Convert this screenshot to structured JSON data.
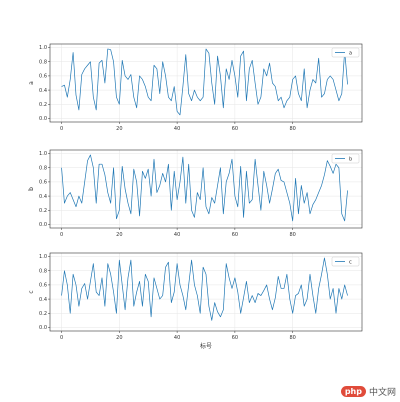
{
  "chart_data": [
    {
      "type": "line",
      "ylabel": "a",
      "xlabel": "",
      "legend": "a",
      "legend_position": "top-right",
      "grid": true,
      "xlim": [
        -4,
        104
      ],
      "ylim": [
        -0.05,
        1.05
      ],
      "xticks": [
        0,
        20,
        40,
        60,
        80
      ],
      "yticks": [
        0.0,
        0.2,
        0.4,
        0.6,
        0.8,
        1.0
      ],
      "color": "#1f77b4",
      "x": [
        0,
        1,
        2,
        3,
        4,
        5,
        6,
        7,
        8,
        9,
        10,
        11,
        12,
        13,
        14,
        15,
        16,
        17,
        18,
        19,
        20,
        21,
        22,
        23,
        24,
        25,
        26,
        27,
        28,
        29,
        30,
        31,
        32,
        33,
        34,
        35,
        36,
        37,
        38,
        39,
        40,
        41,
        42,
        43,
        44,
        45,
        46,
        47,
        48,
        49,
        50,
        51,
        52,
        53,
        54,
        55,
        56,
        57,
        58,
        59,
        60,
        61,
        62,
        63,
        64,
        65,
        66,
        67,
        68,
        69,
        70,
        71,
        72,
        73,
        74,
        75,
        76,
        77,
        78,
        79,
        80,
        81,
        82,
        83,
        84,
        85,
        86,
        87,
        88,
        89,
        90,
        91,
        92,
        93,
        94,
        95,
        96,
        97,
        98,
        99
      ],
      "values": [
        0.45,
        0.47,
        0.3,
        0.55,
        0.93,
        0.33,
        0.12,
        0.62,
        0.7,
        0.75,
        0.8,
        0.3,
        0.12,
        0.78,
        0.82,
        0.5,
        0.98,
        0.97,
        0.8,
        0.3,
        0.2,
        0.82,
        0.6,
        0.55,
        0.62,
        0.3,
        0.15,
        0.6,
        0.55,
        0.45,
        0.3,
        0.25,
        0.75,
        0.7,
        0.35,
        0.8,
        0.6,
        0.3,
        0.25,
        0.45,
        0.1,
        0.05,
        0.45,
        0.9,
        0.35,
        0.25,
        0.4,
        0.3,
        0.25,
        0.3,
        0.98,
        0.92,
        0.5,
        0.2,
        0.88,
        0.6,
        0.15,
        0.7,
        0.55,
        0.82,
        0.6,
        0.3,
        0.88,
        0.95,
        0.25,
        0.7,
        0.82,
        0.5,
        0.2,
        0.3,
        0.7,
        0.6,
        0.78,
        0.5,
        0.45,
        0.25,
        0.3,
        0.15,
        0.25,
        0.3,
        0.55,
        0.6,
        0.35,
        0.25,
        0.7,
        0.15,
        0.4,
        0.55,
        0.5,
        0.85,
        0.3,
        0.35,
        0.55,
        0.6,
        0.55,
        0.4,
        0.25,
        0.35,
        0.95,
        0.48
      ]
    },
    {
      "type": "line",
      "ylabel": "b",
      "xlabel": "",
      "legend": "b",
      "legend_position": "top-right",
      "grid": true,
      "xlim": [
        -4,
        104
      ],
      "ylim": [
        -0.05,
        1.05
      ],
      "xticks": [
        0,
        20,
        40,
        60,
        80
      ],
      "yticks": [
        0.0,
        0.2,
        0.4,
        0.6,
        0.8,
        1.0
      ],
      "color": "#1f77b4",
      "x": [
        0,
        1,
        2,
        3,
        4,
        5,
        6,
        7,
        8,
        9,
        10,
        11,
        12,
        13,
        14,
        15,
        16,
        17,
        18,
        19,
        20,
        21,
        22,
        23,
        24,
        25,
        26,
        27,
        28,
        29,
        30,
        31,
        32,
        33,
        34,
        35,
        36,
        37,
        38,
        39,
        40,
        41,
        42,
        43,
        44,
        45,
        46,
        47,
        48,
        49,
        50,
        51,
        52,
        53,
        54,
        55,
        56,
        57,
        58,
        59,
        60,
        61,
        62,
        63,
        64,
        65,
        66,
        67,
        68,
        69,
        70,
        71,
        72,
        73,
        74,
        75,
        76,
        77,
        78,
        79,
        80,
        81,
        82,
        83,
        84,
        85,
        86,
        87,
        88,
        89,
        90,
        91,
        92,
        93,
        94,
        95,
        96,
        97,
        98,
        99
      ],
      "values": [
        0.8,
        0.3,
        0.4,
        0.45,
        0.35,
        0.25,
        0.4,
        0.3,
        0.6,
        0.9,
        0.98,
        0.8,
        0.3,
        0.85,
        0.85,
        0.7,
        0.45,
        0.3,
        0.8,
        0.08,
        0.2,
        0.82,
        0.5,
        0.3,
        0.15,
        0.78,
        0.6,
        0.12,
        0.75,
        0.65,
        0.78,
        0.4,
        0.92,
        0.45,
        0.55,
        0.72,
        0.6,
        0.85,
        0.2,
        0.75,
        0.35,
        0.6,
        0.95,
        0.3,
        0.85,
        0.2,
        0.1,
        0.45,
        0.35,
        0.8,
        0.25,
        0.15,
        0.38,
        0.3,
        0.55,
        0.8,
        0.15,
        0.6,
        0.72,
        0.92,
        0.4,
        0.25,
        0.82,
        0.1,
        0.75,
        0.3,
        0.35,
        0.92,
        0.55,
        0.2,
        0.75,
        0.55,
        0.3,
        0.5,
        0.72,
        0.78,
        0.62,
        0.6,
        0.45,
        0.3,
        0.05,
        0.65,
        0.15,
        0.55,
        0.3,
        0.45,
        0.15,
        0.28,
        0.35,
        0.45,
        0.55,
        0.7,
        0.9,
        0.82,
        0.72,
        0.85,
        0.8,
        0.15,
        0.05,
        0.48
      ]
    },
    {
      "type": "line",
      "ylabel": "c",
      "xlabel": "标号",
      "legend": "c",
      "legend_position": "top-right",
      "grid": true,
      "xlim": [
        -4,
        104
      ],
      "ylim": [
        -0.05,
        1.05
      ],
      "xticks": [
        0,
        20,
        40,
        60,
        80
      ],
      "yticks": [
        0.0,
        0.2,
        0.4,
        0.6,
        0.8,
        1.0
      ],
      "color": "#1f77b4",
      "x": [
        0,
        1,
        2,
        3,
        4,
        5,
        6,
        7,
        8,
        9,
        10,
        11,
        12,
        13,
        14,
        15,
        16,
        17,
        18,
        19,
        20,
        21,
        22,
        23,
        24,
        25,
        26,
        27,
        28,
        29,
        30,
        31,
        32,
        33,
        34,
        35,
        36,
        37,
        38,
        39,
        40,
        41,
        42,
        43,
        44,
        45,
        46,
        47,
        48,
        49,
        50,
        51,
        52,
        53,
        54,
        55,
        56,
        57,
        58,
        59,
        60,
        61,
        62,
        63,
        64,
        65,
        66,
        67,
        68,
        69,
        70,
        71,
        72,
        73,
        74,
        75,
        76,
        77,
        78,
        79,
        80,
        81,
        82,
        83,
        84,
        85,
        86,
        87,
        88,
        89,
        90,
        91,
        92,
        93,
        94,
        95,
        96,
        97,
        98,
        99
      ],
      "values": [
        0.45,
        0.8,
        0.6,
        0.2,
        0.75,
        0.6,
        0.3,
        0.55,
        0.62,
        0.4,
        0.65,
        0.9,
        0.5,
        0.45,
        0.7,
        0.3,
        0.9,
        0.75,
        0.5,
        0.2,
        0.95,
        0.6,
        0.25,
        0.7,
        0.95,
        0.3,
        0.5,
        0.65,
        0.3,
        0.75,
        0.65,
        0.15,
        0.7,
        0.55,
        0.4,
        0.45,
        0.85,
        0.92,
        0.35,
        0.5,
        0.9,
        0.6,
        0.45,
        0.25,
        0.6,
        0.95,
        0.6,
        0.45,
        0.2,
        0.85,
        0.75,
        0.3,
        0.1,
        0.35,
        0.22,
        0.15,
        0.25,
        0.9,
        0.7,
        0.55,
        0.7,
        0.5,
        0.2,
        0.42,
        0.65,
        0.35,
        0.45,
        0.35,
        0.48,
        0.45,
        0.52,
        0.6,
        0.4,
        0.25,
        0.42,
        0.72,
        0.55,
        0.55,
        0.75,
        0.4,
        0.2,
        0.45,
        0.48,
        0.6,
        0.3,
        0.4,
        0.75,
        0.45,
        0.2,
        0.55,
        0.75,
        0.98,
        0.75,
        0.4,
        0.55,
        0.2,
        0.55,
        0.4,
        0.6,
        0.45
      ]
    }
  ],
  "watermark": {
    "logo_text": "php",
    "site_text": "中文网",
    "url": "https://blog.csdn.net/..."
  }
}
